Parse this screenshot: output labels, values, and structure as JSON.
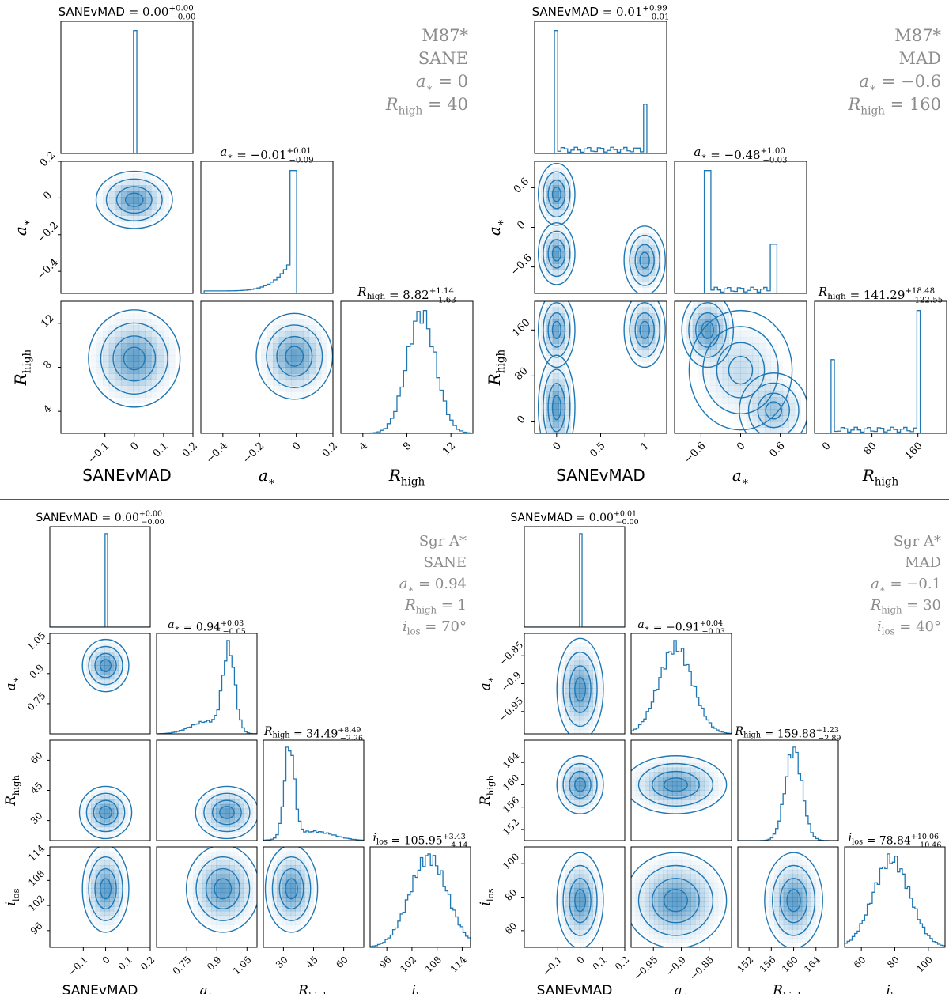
{
  "chart_data": [
    {
      "type": "corner",
      "target": "M87*",
      "model": "SANE",
      "info_labels": [
        {
          "sym": "a",
          "sub": "*",
          "val": "0"
        },
        {
          "sym": "R",
          "sub": "high",
          "val": "40"
        }
      ],
      "params": [
        {
          "name": "SANEvMAD",
          "sub": "",
          "range": [
            -0.25,
            0.2
          ],
          "ticks": [
            -0.1,
            0.0,
            0.1,
            0.2
          ],
          "value": "0.00",
          "plus": "+0.00",
          "minus": "−0.00",
          "hist": {
            "kind": "spike",
            "center": 0.0,
            "width": 0.02
          }
        },
        {
          "name": "a",
          "sub": "*",
          "range": [
            -0.52,
            0.2
          ],
          "ticks": [
            -0.4,
            -0.2,
            0.0
          ],
          "xticks": [
            -0.4,
            -0.2,
            0.0,
            0.2
          ],
          "value": "−0.01",
          "plus": "+0.01",
          "minus": "−0.09",
          "hist": {
            "kind": "ramp",
            "start": -0.5,
            "end": -0.01,
            "peak": 1.0
          }
        },
        {
          "name": "R",
          "sub": "high",
          "range": [
            2,
            14
          ],
          "ticks": [
            4,
            8,
            12
          ],
          "yticks": [
            4,
            8,
            12
          ],
          "value": "8.82",
          "plus": "+1.14",
          "minus": "−1.63",
          "hist": {
            "kind": "gauss",
            "components": [
              [
                9.3,
                1.3,
                1.0
              ]
            ]
          }
        }
      ],
      "y_ticks_left": {
        "1": [
          -0.4,
          -0.2,
          0.0,
          0.2
        ],
        "2": [
          4,
          8,
          12
        ]
      },
      "blobs": [
        {
          "row": 1,
          "col": 0,
          "gauss": [
            [
              0.0,
              -0.01,
              0.05,
              0.06,
              1.0
            ]
          ]
        },
        {
          "row": 2,
          "col": 0,
          "gauss": [
            [
              0.0,
              8.8,
              0.06,
              1.7,
              1.0
            ]
          ]
        },
        {
          "row": 2,
          "col": 1,
          "gauss": [
            [
              -0.01,
              9.0,
              0.08,
              1.5,
              1.0
            ]
          ]
        }
      ]
    },
    {
      "type": "corner",
      "target": "M87*",
      "model": "MAD",
      "info_labels": [
        {
          "sym": "a",
          "sub": "*",
          "val": "−0.6"
        },
        {
          "sym": "R",
          "sub": "high",
          "val": "160"
        }
      ],
      "params": [
        {
          "name": "SANEvMAD",
          "sub": "",
          "range": [
            -0.25,
            1.25
          ],
          "ticks": [
            0.0,
            0.5,
            1.0
          ],
          "value": "0.01",
          "plus": "+0.99",
          "minus": "−0.01",
          "hist": {
            "kind": "bimodal",
            "components": [
              [
                0.0,
                1.0
              ],
              [
                1.0,
                0.4
              ]
            ]
          }
        },
        {
          "name": "a",
          "sub": "*",
          "range": [
            -1.0,
            1.0
          ],
          "ticks": [
            -0.6,
            0.0,
            0.6
          ],
          "value": "−0.48",
          "plus": "+1.00",
          "minus": "−0.03",
          "hist": {
            "kind": "bimodal",
            "components": [
              [
                -0.5,
                1.0
              ],
              [
                0.5,
                0.4
              ]
            ]
          }
        },
        {
          "name": "R",
          "sub": "high",
          "range": [
            -20,
            210
          ],
          "ticks": [
            0,
            80,
            160
          ],
          "value": "141.29",
          "plus": "+18.48",
          "minus": "−122.55",
          "hist": {
            "kind": "bimodal",
            "components": [
              [
                10,
                0.6
              ],
              [
                160,
                1.0
              ]
            ]
          }
        }
      ],
      "y_ticks_left": {
        "1": [
          -0.6,
          0.0,
          0.6
        ],
        "2": [
          0,
          80,
          160
        ]
      },
      "blobs": [
        {
          "row": 1,
          "col": 0,
          "gauss": [
            [
              0.0,
              0.5,
              0.08,
              0.18,
              1.0
            ],
            [
              0.0,
              -0.4,
              0.08,
              0.18,
              1.0
            ],
            [
              1.0,
              -0.5,
              0.09,
              0.2,
              0.8
            ]
          ]
        },
        {
          "row": 2,
          "col": 0,
          "gauss": [
            [
              0.0,
              160,
              0.08,
              25,
              0.9
            ],
            [
              0.0,
              25,
              0.08,
              35,
              1.0
            ],
            [
              1.0,
              160,
              0.09,
              25,
              0.9
            ]
          ]
        },
        {
          "row": 2,
          "col": 1,
          "gauss": [
            [
              -0.5,
              160,
              0.15,
              25,
              1.0
            ],
            [
              0.5,
              20,
              0.2,
              25,
              0.6
            ],
            [
              0.0,
              90,
              0.3,
              40,
              0.35
            ]
          ]
        }
      ]
    },
    {
      "type": "corner",
      "target": "Sgr A*",
      "model": "SANE",
      "info_labels": [
        {
          "sym": "a",
          "sub": "*",
          "val": "0.94"
        },
        {
          "sym": "R",
          "sub": "high",
          "val": "1"
        },
        {
          "sym": "i",
          "sub": "los",
          "val": "70°"
        }
      ],
      "params": [
        {
          "name": "SANEvMAD",
          "sub": "",
          "range": [
            -0.25,
            0.2
          ],
          "ticks": [
            -0.1,
            0.0,
            0.1,
            0.2
          ],
          "value": "0.00",
          "plus": "+0.00",
          "minus": "−0.00",
          "hist": {
            "kind": "spike",
            "center": 0.0,
            "width": 0.02
          }
        },
        {
          "name": "a",
          "sub": "*",
          "range": [
            0.6,
            1.1
          ],
          "ticks": [
            0.75,
            0.9,
            1.05
          ],
          "value": "0.94",
          "plus": "+0.03",
          "minus": "−0.05",
          "hist": {
            "kind": "gauss",
            "components": [
              [
                0.96,
                0.03,
                1.0
              ],
              [
                0.85,
                0.08,
                0.15
              ]
            ]
          }
        },
        {
          "name": "R",
          "sub": "high",
          "range": [
            20,
            70
          ],
          "ticks": [
            30,
            45,
            60
          ],
          "value": "34.49",
          "plus": "+8.49",
          "minus": "−2.26",
          "hist": {
            "kind": "gauss",
            "components": [
              [
                33,
                2.5,
                1.0
              ],
              [
                45,
                10,
                0.1
              ]
            ]
          }
        },
        {
          "name": "i",
          "sub": "los",
          "range": [
            92,
            116
          ],
          "ticks": [
            96,
            102,
            108,
            114
          ],
          "value": "105.95",
          "plus": "+3.43",
          "minus": "−4.14",
          "hist": {
            "kind": "gauss",
            "components": [
              [
                106,
                4.5,
                1.0
              ]
            ]
          }
        }
      ],
      "y_ticks_left": {
        "1": [
          0.75,
          0.9,
          1.05
        ],
        "2": [
          30,
          45,
          60
        ],
        "3": [
          96,
          102,
          108,
          114
        ]
      },
      "blobs": [
        {
          "row": 1,
          "col": 0,
          "gauss": [
            [
              0.0,
              0.94,
              0.04,
              0.05,
              1.0
            ]
          ]
        },
        {
          "row": 2,
          "col": 0,
          "gauss": [
            [
              0.0,
              34,
              0.045,
              5,
              1.0
            ]
          ]
        },
        {
          "row": 2,
          "col": 1,
          "gauss": [
            [
              0.95,
              34,
              0.06,
              5,
              1.0
            ]
          ]
        },
        {
          "row": 3,
          "col": 0,
          "gauss": [
            [
              0.0,
              106,
              0.04,
              4,
              1.0
            ]
          ]
        },
        {
          "row": 3,
          "col": 1,
          "gauss": [
            [
              0.93,
              106,
              0.07,
              4,
              1.0
            ]
          ]
        },
        {
          "row": 3,
          "col": 2,
          "gauss": [
            [
              34,
              106,
              5,
              4,
              1.0
            ]
          ]
        }
      ]
    },
    {
      "type": "corner",
      "target": "Sgr A*",
      "model": "MAD",
      "info_labels": [
        {
          "sym": "a",
          "sub": "*",
          "val": "−0.1"
        },
        {
          "sym": "R",
          "sub": "high",
          "val": "30"
        },
        {
          "sym": "i",
          "sub": "los",
          "val": "40°"
        }
      ],
      "params": [
        {
          "name": "SANEvMAD",
          "sub": "",
          "range": [
            -0.25,
            0.2
          ],
          "ticks": [
            -0.1,
            0.0,
            0.1,
            0.2
          ],
          "value": "0.00",
          "plus": "+0.01",
          "minus": "−0.00",
          "hist": {
            "kind": "spike",
            "center": 0.0,
            "width": 0.02
          }
        },
        {
          "name": "a",
          "sub": "*",
          "range": [
            -0.99,
            -0.81
          ],
          "ticks": [
            -0.95,
            -0.9,
            -0.85
          ],
          "value": "−0.91",
          "plus": "+0.04",
          "minus": "−0.03",
          "hist": {
            "kind": "gauss",
            "components": [
              [
                -0.91,
                0.03,
                1.0
              ]
            ]
          }
        },
        {
          "name": "R",
          "sub": "high",
          "range": [
            150,
            168
          ],
          "ticks": [
            152,
            156,
            160,
            164
          ],
          "value": "159.88",
          "plus": "+1.23",
          "minus": "−2.89",
          "hist": {
            "kind": "gauss",
            "components": [
              [
                160,
                1.5,
                1.0
              ]
            ]
          }
        },
        {
          "name": "i",
          "sub": "los",
          "range": [
            50,
            110
          ],
          "ticks": [
            60,
            80,
            100
          ],
          "value": "78.84",
          "plus": "+10.06",
          "minus": "−10.46",
          "hist": {
            "kind": "gauss",
            "components": [
              [
                78,
                11,
                1.0
              ]
            ]
          }
        }
      ],
      "y_ticks_left": {
        "1": [
          -0.95,
          -0.9,
          -0.85
        ],
        "2": [
          152,
          156,
          160,
          164
        ],
        "3": [
          60,
          80,
          100
        ]
      },
      "blobs": [
        {
          "row": 1,
          "col": 0,
          "gauss": [
            [
              0.0,
              -0.91,
              0.04,
              0.035,
              1.0
            ]
          ]
        },
        {
          "row": 2,
          "col": 0,
          "gauss": [
            [
              0.0,
              160,
              0.04,
              2,
              1.0
            ]
          ]
        },
        {
          "row": 2,
          "col": 1,
          "gauss": [
            [
              -0.91,
              160,
              0.035,
              2,
              1.0
            ]
          ]
        },
        {
          "row": 3,
          "col": 0,
          "gauss": [
            [
              0.0,
              78,
              0.04,
              11,
              1.0
            ]
          ]
        },
        {
          "row": 3,
          "col": 1,
          "gauss": [
            [
              -0.91,
              78,
              0.035,
              11,
              1.0
            ]
          ]
        },
        {
          "row": 3,
          "col": 2,
          "gauss": [
            [
              160,
              78,
              2,
              11,
              1.0
            ]
          ]
        }
      ]
    }
  ]
}
